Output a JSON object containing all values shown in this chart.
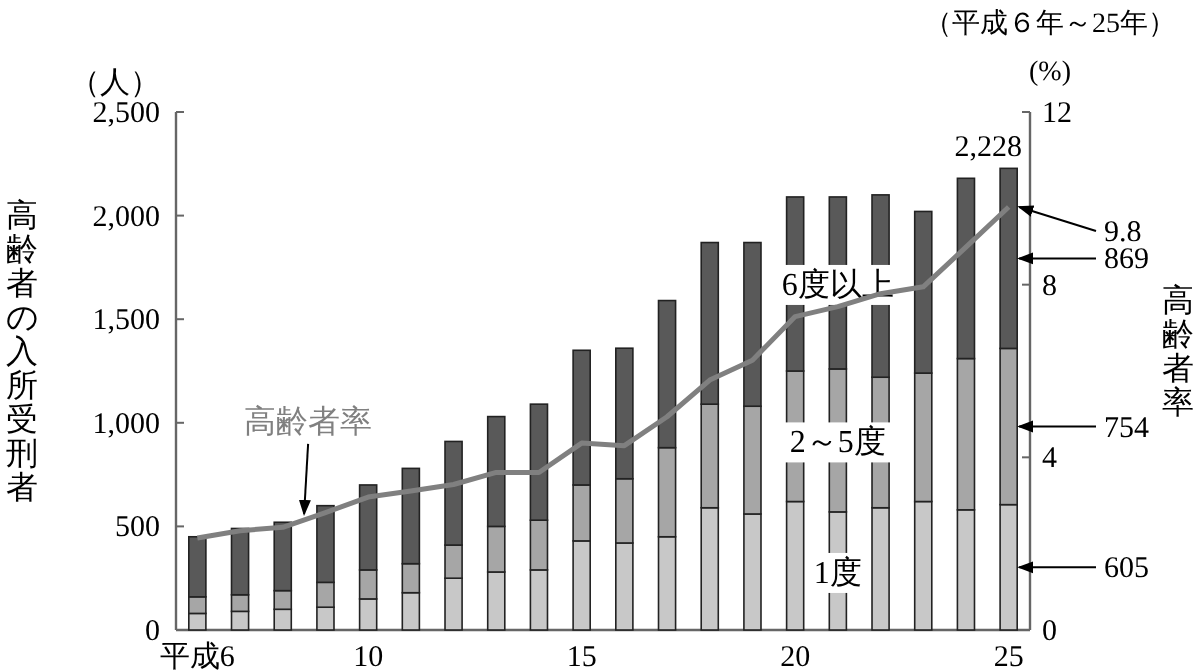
{
  "chart_data": {
    "type": "bar",
    "stacked": true,
    "subtitle": "（平成６年～25年）",
    "ylabel": "高齢者の入所受刑者",
    "y2label": "高齢者率",
    "annotations": [
      "（人）",
      "(%)"
    ],
    "categories": [
      "平成6",
      null,
      null,
      null,
      "10",
      null,
      null,
      null,
      null,
      "15",
      null,
      null,
      null,
      null,
      "20",
      null,
      null,
      null,
      null,
      "25"
    ],
    "ylim": [
      0,
      2500
    ],
    "yticks": [
      {
        "value": 0,
        "label": "0"
      },
      {
        "value": 500,
        "label": "500"
      },
      {
        "value": 1000,
        "label": "1,000"
      },
      {
        "value": 1500,
        "label": "1,500"
      },
      {
        "value": 2000,
        "label": "2,000"
      },
      {
        "value": 2500,
        "label": "2,500"
      }
    ],
    "y2lim": [
      0,
      12
    ],
    "y2ticks": [
      0,
      4,
      8,
      12
    ],
    "legend": false,
    "totals": [
      null,
      null,
      null,
      null,
      null,
      null,
      null,
      null,
      null,
      null,
      null,
      null,
      null,
      null,
      null,
      null,
      null,
      null,
      null,
      "2,228"
    ],
    "series": [
      {
        "name": "1度",
        "color": "#c8c8c8",
        "values": [
          80,
          90,
          100,
          110,
          150,
          180,
          250,
          280,
          290,
          430,
          420,
          450,
          590,
          560,
          620,
          570,
          590,
          620,
          580,
          605
        ],
        "value_labels": [
          null,
          null,
          null,
          null,
          null,
          null,
          null,
          null,
          null,
          null,
          null,
          null,
          null,
          null,
          null,
          null,
          null,
          null,
          null,
          "605"
        ]
      },
      {
        "name": "2～5度",
        "color": "#a6a6a6",
        "values": [
          80,
          80,
          90,
          120,
          140,
          140,
          160,
          220,
          240,
          270,
          310,
          430,
          500,
          520,
          630,
          690,
          630,
          620,
          730,
          754
        ],
        "value_labels": [
          null,
          null,
          null,
          null,
          null,
          null,
          null,
          null,
          null,
          null,
          null,
          null,
          null,
          null,
          null,
          null,
          null,
          null,
          null,
          "754"
        ]
      },
      {
        "name": "6度以上",
        "color": "#595959",
        "values": [
          290,
          320,
          330,
          370,
          410,
          460,
          500,
          530,
          560,
          650,
          630,
          710,
          780,
          790,
          840,
          830,
          880,
          780,
          870,
          869
        ],
        "value_labels": [
          null,
          null,
          null,
          null,
          null,
          null,
          null,
          null,
          null,
          null,
          null,
          null,
          null,
          null,
          null,
          null,
          null,
          null,
          null,
          "869"
        ]
      },
      {
        "name": "高齢者率",
        "type": "line",
        "axis": "y2",
        "color": "#808080",
        "values": [
          2.13,
          2.3,
          2.38,
          2.72,
          3.08,
          3.22,
          3.37,
          3.65,
          3.65,
          4.33,
          4.27,
          4.94,
          5.79,
          6.25,
          7.26,
          7.49,
          7.79,
          7.95,
          8.87,
          9.8
        ],
        "value_labels": [
          null,
          null,
          null,
          null,
          null,
          null,
          null,
          null,
          null,
          null,
          null,
          null,
          null,
          null,
          null,
          null,
          null,
          null,
          null,
          "9.8"
        ]
      }
    ]
  }
}
